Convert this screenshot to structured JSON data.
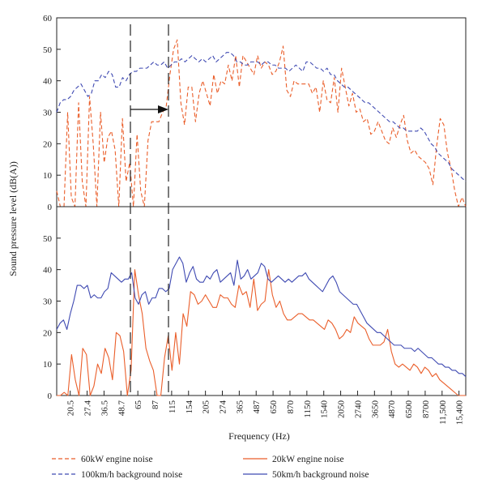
{
  "chart_data": {
    "type": "line",
    "xlabel": "Frequency (Hz)",
    "ylabel": "Sound pressure level (dB(A))",
    "x_scale": "categorical (1/12-octave bands)",
    "x_tick_labels": [
      "20.5",
      "27.4",
      "36.5",
      "48.7",
      "65",
      "87",
      "115",
      "154",
      "205",
      "274",
      "365",
      "487",
      "650",
      "870",
      "1150",
      "1540",
      "2050",
      "2740",
      "3650",
      "4870",
      "6500",
      "8700",
      "11,500",
      "15,400"
    ],
    "grid": false,
    "legend_position": "bottom",
    "colors": {
      "orange": "#ea5e2a",
      "blue": "#3f4ab2"
    },
    "panels": [
      {
        "name": "top",
        "ylim": [
          0,
          60
        ],
        "yticks": [
          0,
          10,
          20,
          30,
          40,
          50,
          60
        ],
        "annotation": "arrow-between-dashed-markers",
        "series": [
          {
            "name": "60kW engine noise",
            "line_style": "dashed",
            "color": "#ea5e2a",
            "values": [
              5,
              0,
              0,
              30,
              3,
              0,
              33,
              8,
              0,
              35,
              20,
              0,
              30,
              14,
              22,
              24,
              18,
              0,
              28,
              8,
              14,
              0,
              23,
              5,
              0,
              21,
              27,
              27,
              27,
              30,
              32,
              42,
              50,
              53,
              33,
              26,
              38,
              38,
              27,
              36,
              40,
              36,
              32,
              42,
              36,
              40,
              39,
              45,
              40,
              48,
              38,
              48,
              46,
              44,
              42,
              48,
              44,
              46,
              45,
              42,
              43,
              46,
              51,
              37,
              35,
              40,
              39,
              39,
              39,
              39,
              36,
              38,
              30,
              40,
              34,
              33,
              41,
              30,
              44,
              38,
              32,
              36,
              30,
              31,
              27,
              28,
              23,
              24,
              27,
              24,
              21,
              20,
              25,
              22,
              26,
              29,
              21,
              17,
              18,
              16,
              15,
              14,
              12,
              7,
              19,
              28,
              26,
              17,
              12,
              5,
              0,
              3,
              0
            ]
          },
          {
            "name": "100km/h background noise",
            "line_style": "dashed",
            "color": "#3f4ab2",
            "values": [
              30,
              33,
              34,
              34,
              35,
              37,
              38,
              39,
              37,
              35,
              36,
              40,
              40,
              42,
              41,
              43,
              42,
              38,
              38,
              41,
              40,
              42,
              43,
              43,
              44,
              44,
              44,
              45,
              46,
              45,
              45,
              46,
              44,
              45,
              46,
              46,
              47,
              46,
              47,
              48,
              47,
              46,
              47,
              46,
              47,
              48,
              46,
              47,
              48,
              49,
              49,
              48,
              46,
              46,
              45,
              45,
              46,
              46,
              46,
              45,
              46,
              46,
              45,
              45,
              44,
              44,
              44,
              43,
              44,
              45,
              44,
              43,
              46,
              46,
              45,
              44,
              44,
              43,
              44,
              42,
              42,
              40,
              39,
              38,
              38,
              37,
              36,
              35,
              34,
              33,
              33,
              32,
              31,
              30,
              29,
              28,
              27,
              27,
              26,
              25,
              25,
              24,
              24,
              24,
              24,
              25,
              24,
              22,
              20,
              19,
              17,
              16,
              15,
              14,
              12,
              11,
              10,
              9,
              8
            ]
          }
        ]
      },
      {
        "name": "bottom",
        "ylim": [
          0,
          60
        ],
        "yticks": [
          0,
          10,
          20,
          30,
          40,
          50
        ],
        "series": [
          {
            "name": "20kW engine noise",
            "line_style": "solid",
            "color": "#ea5e2a",
            "values": [
              0,
              0,
              1,
              0,
              13,
              5,
              0,
              15,
              13,
              0,
              3,
              10,
              7,
              15,
              12,
              5,
              20,
              19,
              14,
              0,
              8,
              40,
              32,
              26,
              15,
              11,
              8,
              0,
              0,
              12,
              19,
              8,
              20,
              10,
              26,
              22,
              33,
              32,
              29,
              30,
              32,
              30,
              28,
              28,
              32,
              31,
              31,
              29,
              28,
              35,
              32,
              33,
              28,
              37,
              27,
              29,
              30,
              40,
              32,
              28,
              30,
              26,
              24,
              24,
              25,
              26,
              26,
              25,
              24,
              24,
              23,
              22,
              21,
              24,
              23,
              21,
              18,
              19,
              21,
              20,
              25,
              23,
              22,
              21,
              18,
              16,
              16,
              16,
              17,
              21,
              14,
              10,
              9,
              10,
              9,
              8,
              10,
              9,
              7,
              9,
              8,
              6,
              7,
              5,
              4,
              3,
              2,
              1,
              0,
              0,
              0
            ]
          },
          {
            "name": "50km/h background noise",
            "line_style": "solid",
            "color": "#3f4ab2",
            "values": [
              21,
              23,
              24,
              21,
              26,
              30,
              35,
              35,
              34,
              35,
              31,
              32,
              31,
              31,
              33,
              34,
              39,
              38,
              37,
              36,
              37,
              37,
              39,
              31,
              29,
              32,
              33,
              29,
              31,
              31,
              34,
              34,
              33,
              34,
              40,
              42,
              44,
              42,
              36,
              39,
              41,
              37,
              36,
              36,
              38,
              37,
              39,
              40,
              36,
              37,
              38,
              39,
              35,
              43,
              37,
              38,
              40,
              37,
              38,
              39,
              42,
              41,
              37,
              36,
              37,
              38,
              37,
              36,
              37,
              36,
              37,
              38,
              38,
              39,
              37,
              36,
              35,
              34,
              33,
              35,
              37,
              38,
              36,
              33,
              32,
              31,
              30,
              29,
              29,
              27,
              25,
              23,
              22,
              21,
              20,
              20,
              19,
              18,
              17,
              16,
              16,
              16,
              15,
              15,
              15,
              14,
              15,
              14,
              13,
              12,
              12,
              11,
              10,
              10,
              9,
              9,
              8,
              8,
              7,
              7,
              6
            ]
          }
        ]
      }
    ]
  }
}
